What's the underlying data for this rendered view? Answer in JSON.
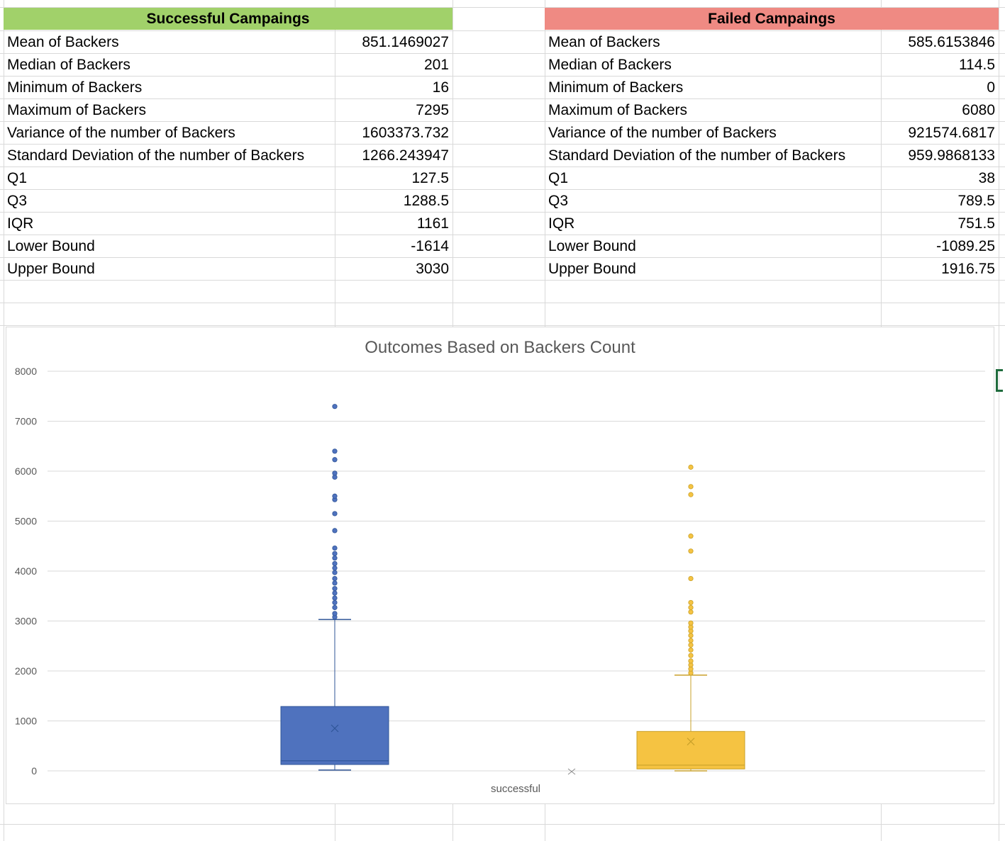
{
  "tables": {
    "successful": {
      "title": "Successful Campaings",
      "header_color": "#a1d16a",
      "rows": [
        {
          "label": "Mean of Backers",
          "value": "851.1469027"
        },
        {
          "label": "Median of Backers",
          "value": "201"
        },
        {
          "label": "Minimum of Backers",
          "value": "16"
        },
        {
          "label": "Maximum of Backers",
          "value": "7295"
        },
        {
          "label": "Variance of the number of Backers",
          "value": "1603373.732"
        },
        {
          "label": "Standard Deviation of the number of Backers",
          "value": "1266.243947"
        },
        {
          "label": "Q1",
          "value": "127.5"
        },
        {
          "label": "Q3",
          "value": "1288.5"
        },
        {
          "label": "IQR",
          "value": "1161"
        },
        {
          "label": "Lower Bound",
          "value": "-1614"
        },
        {
          "label": "Upper Bound",
          "value": "3030"
        }
      ]
    },
    "failed": {
      "title": "Failed Campaings",
      "header_color": "#ef8a83",
      "rows": [
        {
          "label": "Mean of Backers",
          "value": "585.6153846"
        },
        {
          "label": "Median of Backers",
          "value": "114.5"
        },
        {
          "label": "Minimum of Backers",
          "value": "0"
        },
        {
          "label": "Maximum of Backers",
          "value": "6080"
        },
        {
          "label": "Variance of the number of Backers",
          "value": "921574.6817"
        },
        {
          "label": "Standard Deviation of the number of Backers",
          "value": "959.9868133"
        },
        {
          "label": "Q1",
          "value": "38"
        },
        {
          "label": "Q3",
          "value": "789.5"
        },
        {
          "label": "IQR",
          "value": "751.5"
        },
        {
          "label": "Lower Bound",
          "value": "-1089.25"
        },
        {
          "label": "Upper Bound",
          "value": "1916.75"
        }
      ]
    }
  },
  "chart_data": {
    "type": "boxplot",
    "title": "Outcomes Based on Backers Count",
    "xlabel": "successful",
    "ylabel": "",
    "ylim": [
      0,
      8000
    ],
    "yticks": [
      0,
      1000,
      2000,
      3000,
      4000,
      5000,
      6000,
      7000,
      8000
    ],
    "grid": true,
    "series": [
      {
        "color": "#4f72be",
        "min": 16,
        "q1": 127.5,
        "median": 201,
        "q3": 1288.5,
        "upper_whisker": 3030,
        "mean": 851.15,
        "outliers": [
          3080,
          3150,
          3270,
          3370,
          3460,
          3560,
          3650,
          3760,
          3850,
          3970,
          4060,
          4150,
          4260,
          4350,
          4460,
          4810,
          5150,
          5430,
          5500,
          5880,
          5960,
          6230,
          6400,
          7295
        ]
      },
      {
        "color": "#f5c342",
        "min": 0,
        "q1": 38,
        "median": 114.5,
        "q3": 789.5,
        "upper_whisker": 1916.75,
        "mean": 585.6,
        "outliers": [
          1960,
          2040,
          2120,
          2200,
          2310,
          2420,
          2520,
          2610,
          2710,
          2800,
          2880,
          2960,
          3180,
          3270,
          3370,
          3850,
          4400,
          4700,
          5530,
          5690,
          6080
        ]
      }
    ],
    "stray_marker": {
      "value": 0
    }
  }
}
